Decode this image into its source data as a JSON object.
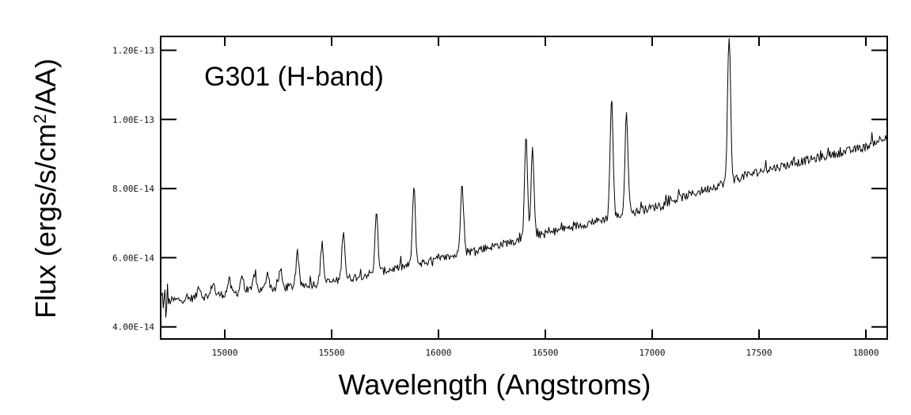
{
  "chart_data": {
    "type": "line",
    "title": "G301 (H-band)",
    "xlabel": "Wavelength (Angstroms)",
    "ylabel_main": "Flux (ergs/s/cm",
    "ylabel_sup": "2",
    "ylabel_tail": "/AA)",
    "xlim": [
      14700,
      18100
    ],
    "ylim": [
      3.65e-14,
      1.24e-13
    ],
    "x_ticks": [
      15000,
      15500,
      16000,
      16500,
      17000,
      17500,
      18000
    ],
    "x_tick_labels": [
      "15000",
      "15500",
      "16000",
      "16500",
      "17000",
      "17500",
      "18000"
    ],
    "y_ticks": [
      4e-14,
      6e-14,
      8e-14,
      1e-13,
      1.2e-13
    ],
    "y_tick_labels": [
      "4.00E-14",
      "6.00E-14",
      "8.00E-14",
      "1.00E-13",
      "1.20E-13"
    ],
    "grid": false,
    "continuum": {
      "x": [
        14700,
        15000,
        15500,
        16000,
        16500,
        17000,
        17500,
        18000,
        18100
      ],
      "y": [
        4.72e-14,
        4.95e-14,
        5.3e-14,
        5.95e-14,
        6.7e-14,
        7.45e-14,
        8.5e-14,
        9.2e-14,
        9.55e-14
      ]
    },
    "emission_lines": {
      "x": [
        14880,
        14945,
        15020,
        15080,
        15140,
        15200,
        15260,
        15340,
        15455,
        15555,
        15710,
        15885,
        16110,
        16410,
        16440,
        16810,
        16880,
        17360
      ],
      "peak": [
        5.2e-14,
        5.3e-14,
        5.35e-14,
        5.5e-14,
        5.55e-14,
        5.6e-14,
        5.65e-14,
        6.05e-14,
        6.4e-14,
        6.8e-14,
        7.25e-14,
        8e-14,
        8.25e-14,
        9.45e-14,
        9.1e-14,
        1.06e-13,
        1.02e-13,
        1.24e-13
      ]
    }
  }
}
